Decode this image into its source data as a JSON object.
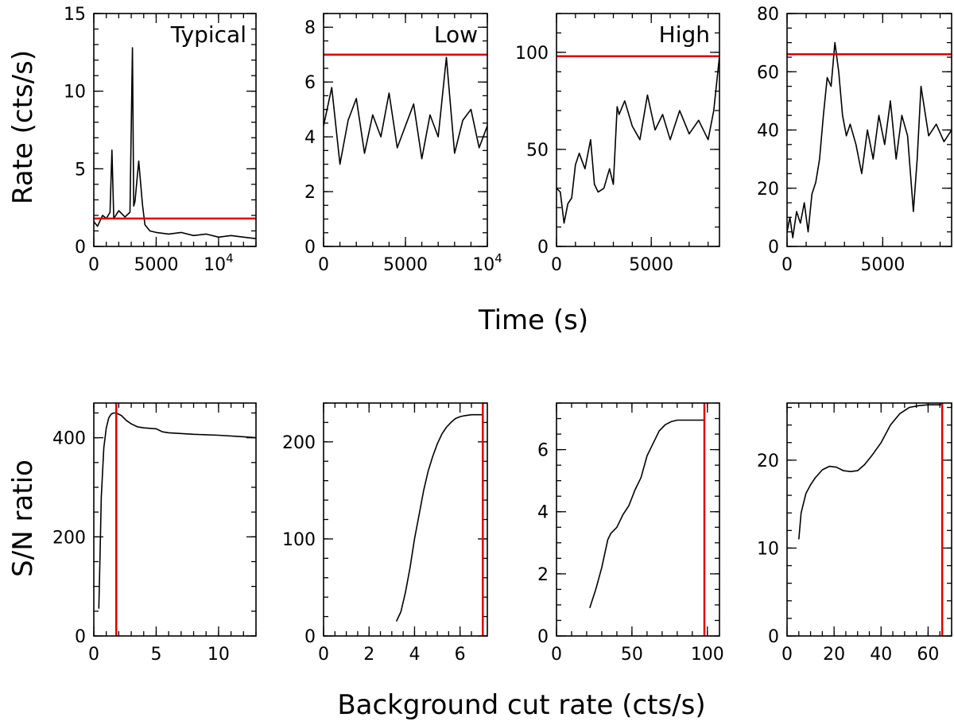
{
  "colors": {
    "axis": "#000000",
    "series": "#000000",
    "threshold": "#e00000"
  },
  "labels": {
    "top_ylabel": "Rate (cts/s)",
    "top_xlabel": "Time (s)",
    "bottom_ylabel": "S/N ratio",
    "bottom_xlabel": "Background cut rate (cts/s)"
  },
  "chart_data": [
    {
      "type": "line",
      "row": "top",
      "col": 0,
      "title": "Typical",
      "xlim": [
        0,
        13000
      ],
      "ylim": [
        0,
        15
      ],
      "xticks": [
        0,
        5000,
        10000
      ],
      "xtick_labels": [
        "0",
        "5000",
        "10^4"
      ],
      "yticks": [
        0,
        5,
        10,
        15
      ],
      "ytick_labels": [
        "0",
        "5",
        "10",
        "15"
      ],
      "xminor": 1000,
      "yminor": 1,
      "hline": 1.8,
      "series": [
        {
          "x": [
            0,
            300,
            700,
            1000,
            1300,
            1450,
            1600,
            2000,
            2500,
            2900,
            3100,
            3200,
            3300,
            3600,
            3900,
            4100,
            4500,
            5000,
            6000,
            7000,
            8000,
            9000,
            10000,
            11000,
            12000,
            13000
          ],
          "y": [
            1.6,
            1.3,
            2.0,
            1.8,
            2.2,
            6.2,
            1.8,
            2.3,
            1.9,
            2.2,
            12.8,
            2.6,
            2.9,
            5.5,
            2.7,
            1.4,
            1.0,
            0.9,
            0.8,
            0.9,
            0.7,
            0.8,
            0.6,
            0.7,
            0.6,
            0.5
          ]
        }
      ]
    },
    {
      "type": "line",
      "row": "top",
      "col": 1,
      "title": "Low",
      "xlim": [
        0,
        10000
      ],
      "ylim": [
        0,
        8.5
      ],
      "xticks": [
        0,
        5000,
        10000
      ],
      "xtick_labels": [
        "0",
        "5000",
        "10^4"
      ],
      "yticks": [
        0,
        2,
        4,
        6,
        8
      ],
      "ytick_labels": [
        "0",
        "2",
        "4",
        "6",
        "8"
      ],
      "xminor": 1000,
      "yminor": 0.5,
      "hline": 7.0,
      "series": [
        {
          "x": [
            0,
            500,
            1000,
            1500,
            2000,
            2500,
            3000,
            3500,
            4000,
            4500,
            5000,
            5500,
            6000,
            6500,
            7000,
            7500,
            8000,
            8500,
            9000,
            9500,
            10000
          ],
          "y": [
            4.4,
            5.8,
            3.0,
            4.6,
            5.4,
            3.4,
            4.8,
            4.0,
            5.6,
            3.6,
            4.4,
            5.2,
            3.2,
            4.8,
            4.0,
            6.9,
            3.4,
            4.6,
            5.0,
            3.6,
            4.4
          ]
        }
      ]
    },
    {
      "type": "line",
      "row": "top",
      "col": 2,
      "title": "High",
      "xlim": [
        0,
        8600
      ],
      "ylim": [
        0,
        120
      ],
      "xticks": [
        0,
        5000
      ],
      "xtick_labels": [
        "0",
        "5000"
      ],
      "yticks": [
        0,
        50,
        100
      ],
      "ytick_labels": [
        "0",
        "50",
        "100"
      ],
      "xminor": 1000,
      "yminor": 10,
      "hline": 98,
      "series": [
        {
          "x": [
            0,
            200,
            400,
            600,
            800,
            1000,
            1200,
            1500,
            1800,
            2000,
            2200,
            2500,
            2800,
            3000,
            3200,
            3300,
            3600,
            4000,
            4400,
            4800,
            5200,
            5600,
            6000,
            6500,
            7000,
            7500,
            8000,
            8300,
            8600
          ],
          "y": [
            30,
            28,
            12,
            22,
            25,
            42,
            48,
            40,
            55,
            32,
            28,
            30,
            40,
            32,
            72,
            68,
            75,
            62,
            55,
            78,
            60,
            68,
            55,
            70,
            58,
            65,
            55,
            70,
            98
          ]
        }
      ]
    },
    {
      "type": "line",
      "row": "top",
      "col": 3,
      "title": "",
      "xlim": [
        0,
        8600
      ],
      "ylim": [
        0,
        80
      ],
      "xticks": [
        0,
        5000
      ],
      "xtick_labels": [
        "0",
        "5000"
      ],
      "yticks": [
        0,
        20,
        40,
        60,
        80
      ],
      "ytick_labels": [
        "0",
        "20",
        "40",
        "60",
        "80"
      ],
      "xminor": 1000,
      "yminor": 5,
      "hline": 66,
      "series": [
        {
          "x": [
            0,
            150,
            300,
            500,
            700,
            900,
            1100,
            1300,
            1500,
            1700,
            1900,
            2100,
            2300,
            2500,
            2700,
            2900,
            3100,
            3300,
            3600,
            3900,
            4200,
            4500,
            4800,
            5100,
            5400,
            5700,
            6000,
            6300,
            6600,
            6800,
            7000,
            7400,
            7800,
            8200,
            8600
          ],
          "y": [
            5,
            10,
            3,
            12,
            8,
            15,
            5,
            18,
            22,
            30,
            45,
            58,
            55,
            70,
            60,
            45,
            38,
            42,
            35,
            25,
            40,
            30,
            45,
            35,
            50,
            30,
            45,
            38,
            12,
            30,
            55,
            38,
            42,
            36,
            40
          ]
        }
      ]
    },
    {
      "type": "line",
      "row": "bottom",
      "col": 0,
      "title": "",
      "xlim": [
        0,
        13
      ],
      "ylim": [
        0,
        470
      ],
      "xticks": [
        0,
        5,
        10
      ],
      "xtick_labels": [
        "0",
        "5",
        "10"
      ],
      "yticks": [
        0,
        200,
        400
      ],
      "ytick_labels": [
        "0",
        "200",
        "400"
      ],
      "xminor": 1,
      "yminor": 50,
      "vline": 1.8,
      "series": [
        {
          "x": [
            0.4,
            0.5,
            0.6,
            0.8,
            1.0,
            1.2,
            1.4,
            1.6,
            1.8,
            2.2,
            2.6,
            3.0,
            3.5,
            4.0,
            5.0,
            5.5,
            6.0,
            8.0,
            10.0,
            12.0,
            13.0
          ],
          "y": [
            55,
            160,
            280,
            380,
            420,
            440,
            448,
            450,
            450,
            445,
            435,
            428,
            422,
            420,
            418,
            412,
            410,
            407,
            405,
            402,
            400
          ]
        }
      ]
    },
    {
      "type": "line",
      "row": "bottom",
      "col": 1,
      "title": "",
      "xlim": [
        0,
        7.2
      ],
      "ylim": [
        0,
        240
      ],
      "xticks": [
        0,
        2,
        4,
        6
      ],
      "xtick_labels": [
        "0",
        "2",
        "4",
        "6"
      ],
      "xminor": 0.5,
      "yminor": 20,
      "yticks": [
        0,
        100,
        200
      ],
      "ytick_labels": [
        "0",
        "100",
        "200"
      ],
      "vline": 7.0,
      "series": [
        {
          "x": [
            3.2,
            3.4,
            3.6,
            3.8,
            4.0,
            4.2,
            4.4,
            4.6,
            4.8,
            5.0,
            5.2,
            5.4,
            5.6,
            5.8,
            6.0,
            6.2,
            6.5,
            7.0
          ],
          "y": [
            15,
            25,
            45,
            70,
            100,
            125,
            150,
            170,
            185,
            198,
            208,
            215,
            220,
            224,
            226,
            227,
            228,
            228
          ]
        }
      ]
    },
    {
      "type": "line",
      "row": "bottom",
      "col": 2,
      "title": "",
      "xlim": [
        0,
        108
      ],
      "ylim": [
        0,
        7.5
      ],
      "xticks": [
        0,
        50,
        100
      ],
      "xtick_labels": [
        "0",
        "50",
        "100"
      ],
      "yticks": [
        0,
        2,
        4,
        6
      ],
      "ytick_labels": [
        "0",
        "2",
        "4",
        "6"
      ],
      "xminor": 10,
      "yminor": 0.5,
      "vline": 98,
      "series": [
        {
          "x": [
            22,
            26,
            30,
            34,
            36,
            40,
            44,
            48,
            52,
            56,
            60,
            64,
            68,
            72,
            76,
            80,
            90,
            98
          ],
          "y": [
            0.9,
            1.5,
            2.2,
            3.1,
            3.3,
            3.5,
            3.9,
            4.2,
            4.7,
            5.1,
            5.8,
            6.2,
            6.6,
            6.8,
            6.9,
            6.95,
            6.95,
            6.95
          ]
        }
      ]
    },
    {
      "type": "line",
      "row": "bottom",
      "col": 3,
      "title": "",
      "xlim": [
        0,
        70
      ],
      "ylim": [
        0,
        26.5
      ],
      "xticks": [
        0,
        20,
        40,
        60
      ],
      "xtick_labels": [
        "0",
        "20",
        "40",
        "60"
      ],
      "yticks": [
        0,
        10,
        20
      ],
      "ytick_labels": [
        "0",
        "10",
        "20"
      ],
      "xminor": 5,
      "yminor": 2,
      "vline": 66,
      "series": [
        {
          "x": [
            5,
            6,
            8,
            10,
            12,
            15,
            18,
            21,
            24,
            27,
            30,
            33,
            36,
            40,
            44,
            48,
            52,
            56,
            60,
            66
          ],
          "y": [
            11,
            14,
            16.2,
            17.2,
            18.0,
            18.9,
            19.3,
            19.2,
            18.8,
            18.7,
            18.8,
            19.5,
            20.5,
            22,
            24,
            25.3,
            26,
            26.2,
            26.3,
            26.3
          ]
        }
      ]
    }
  ]
}
